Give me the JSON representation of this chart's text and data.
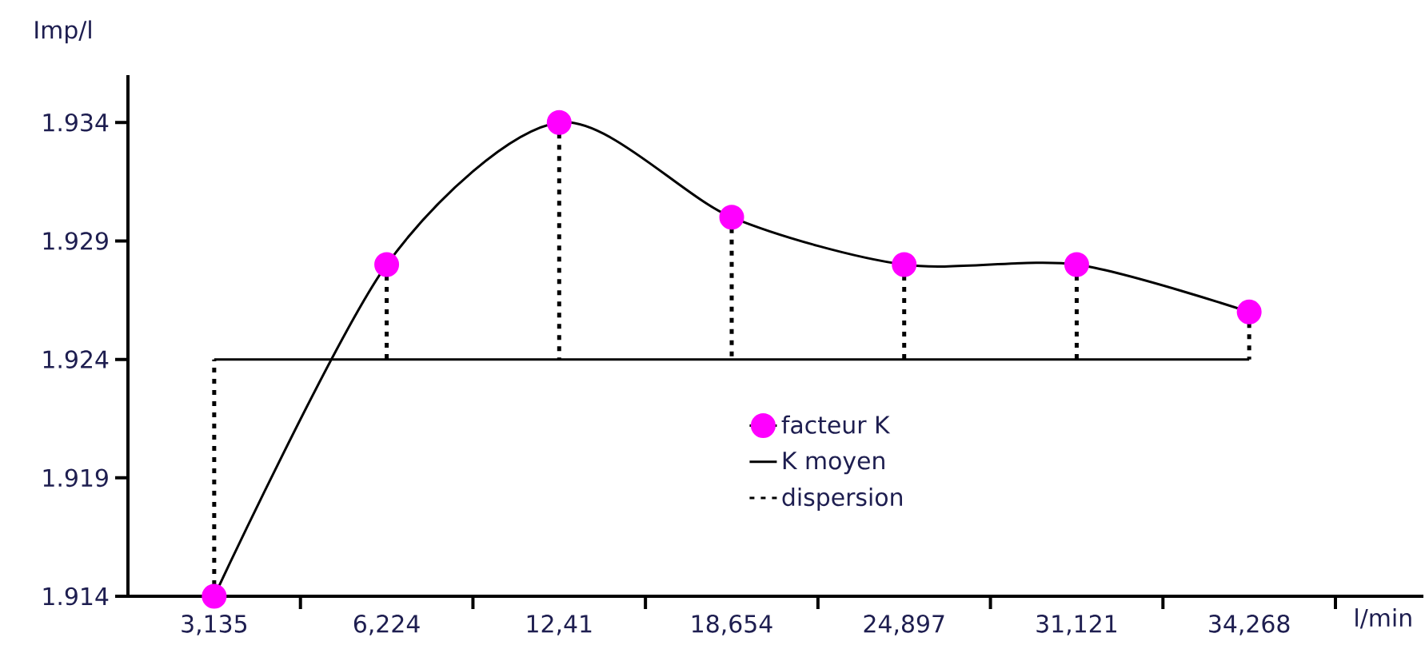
{
  "chart_data": {
    "type": "line",
    "xlabel": "l/min",
    "ylabel": "Imp/l",
    "categories": [
      "3,135",
      "6,224",
      "12,41",
      "18,654",
      "24,897",
      "31,121",
      "34,268"
    ],
    "series": [
      {
        "name": "facteur K",
        "color": "#ff00ff",
        "marker": "circle",
        "line_style": "solid",
        "values": [
          1.914,
          1.928,
          1.934,
          1.93,
          1.928,
          1.928,
          1.926
        ],
        "errors": [
          [
            1.914,
            1.924
          ],
          [
            1.924,
            1.928
          ],
          [
            1.924,
            1.934
          ],
          [
            1.924,
            1.93
          ],
          [
            1.924,
            1.928
          ],
          [
            1.924,
            1.928
          ],
          [
            1.924,
            1.926
          ]
        ]
      },
      {
        "name": "K moyen",
        "type": "line",
        "color": "#000000",
        "marker": "none",
        "line_style": "solid",
        "values": [
          1.924,
          1.924,
          1.924,
          1.924,
          1.924,
          1.924,
          1.924
        ]
      }
    ],
    "annotations": [
      "dispersion"
    ],
    "ylim": [
      1.914,
      1.936
    ],
    "yticks": [
      1.914,
      1.919,
      1.924,
      1.929,
      1.934
    ],
    "legend": "bottom",
    "grid": false
  }
}
